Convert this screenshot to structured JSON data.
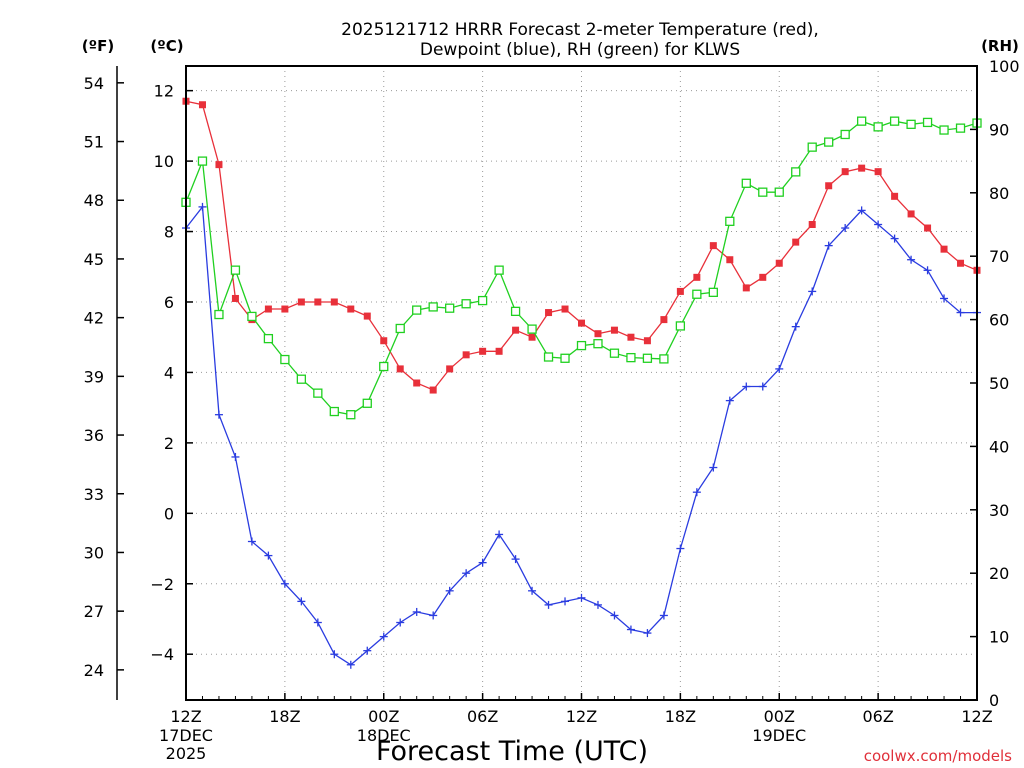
{
  "chart_data": {
    "type": "line",
    "title_lines": [
      "2025121712 HRRR Forecast 2-meter Temperature (red),",
      "Dewpoint (blue), RH (green) for KLWS"
    ],
    "xlabel": "Forecast Time (UTC)",
    "units": {
      "fahrenheit": "(ºF)",
      "celsius": "(ºC)",
      "rh": "(RH)"
    },
    "x_start": "2025-12-17 12Z",
    "x_step_hours": 1,
    "x_ticks": [
      {
        "hour": 0,
        "label": "12Z",
        "sub": [
          "17DEC",
          "2025"
        ]
      },
      {
        "hour": 6,
        "label": "18Z",
        "sub": []
      },
      {
        "hour": 12,
        "label": "00Z",
        "sub": [
          "18DEC"
        ]
      },
      {
        "hour": 18,
        "label": "06Z",
        "sub": []
      },
      {
        "hour": 24,
        "label": "12Z",
        "sub": []
      },
      {
        "hour": 30,
        "label": "18Z",
        "sub": []
      },
      {
        "hour": 36,
        "label": "00Z",
        "sub": [
          "19DEC"
        ]
      },
      {
        "hour": 42,
        "label": "06Z",
        "sub": []
      },
      {
        "hour": 48,
        "label": "12Z",
        "sub": []
      }
    ],
    "x_range": [
      0,
      48
    ],
    "c_axis": {
      "range": [
        -5.3,
        12.7
      ],
      "ticks": [
        -4,
        -2,
        0,
        2,
        4,
        6,
        8,
        10,
        12
      ]
    },
    "f_axis": {
      "ticks": [
        24,
        27,
        30,
        33,
        36,
        39,
        42,
        45,
        48,
        51,
        54
      ]
    },
    "rh_axis": {
      "range": [
        0,
        100
      ],
      "ticks": [
        0,
        10,
        20,
        30,
        40,
        50,
        60,
        70,
        80,
        90,
        100
      ]
    },
    "grid": true,
    "series": [
      {
        "key": "temperature",
        "axis": "c",
        "color": "#e8303a",
        "marker": "filled-square",
        "values": [
          11.7,
          11.6,
          9.9,
          6.1,
          5.5,
          5.8,
          5.8,
          6.0,
          6.0,
          6.0,
          5.8,
          5.6,
          4.9,
          4.1,
          3.7,
          3.5,
          4.1,
          4.5,
          4.6,
          4.6,
          5.2,
          5.0,
          5.7,
          5.8,
          5.4,
          5.1,
          5.2,
          5.0,
          4.9,
          5.5,
          6.3,
          6.7,
          7.6,
          7.2,
          6.4,
          6.7,
          7.1,
          7.7,
          8.2,
          9.3,
          9.7,
          9.8,
          9.7,
          9.0,
          8.5,
          8.1,
          7.5,
          7.1,
          6.9
        ]
      },
      {
        "key": "dewpoint",
        "axis": "c",
        "color": "#2a3ce0",
        "marker": "plus",
        "values": [
          8.1,
          8.7,
          2.8,
          1.6,
          -0.8,
          -1.2,
          -2.0,
          -2.5,
          -3.1,
          -4.0,
          -4.3,
          -3.9,
          -3.5,
          -3.1,
          -2.8,
          -2.9,
          -2.2,
          -1.7,
          -1.4,
          -0.6,
          -1.3,
          -2.2,
          -2.6,
          -2.5,
          -2.4,
          -2.6,
          -2.9,
          -3.3,
          -3.4,
          -2.9,
          -1.0,
          0.6,
          1.3,
          3.2,
          3.6,
          3.6,
          4.1,
          5.3,
          6.3,
          7.6,
          8.1,
          8.6,
          8.2,
          7.8,
          7.2,
          6.9,
          6.1,
          5.7,
          5.7
        ]
      },
      {
        "key": "rh",
        "axis": "rh",
        "color": "#20d020",
        "marker": "open-square",
        "values": [
          78.5,
          85.0,
          60.8,
          67.8,
          60.5,
          57.0,
          53.7,
          50.6,
          48.4,
          45.5,
          45.0,
          46.8,
          52.6,
          58.6,
          61.5,
          62.0,
          61.8,
          62.5,
          63.0,
          67.8,
          61.3,
          58.5,
          54.1,
          53.9,
          55.9,
          56.2,
          54.7,
          54.0,
          53.9,
          53.8,
          59.0,
          64.0,
          64.3,
          75.5,
          81.5,
          80.1,
          80.1,
          83.3,
          87.2,
          88.0,
          89.2,
          91.3,
          90.4,
          91.3,
          90.8,
          91.1,
          89.9,
          90.2,
          91.0
        ]
      }
    ]
  },
  "watermark": "coolwx.com/models"
}
